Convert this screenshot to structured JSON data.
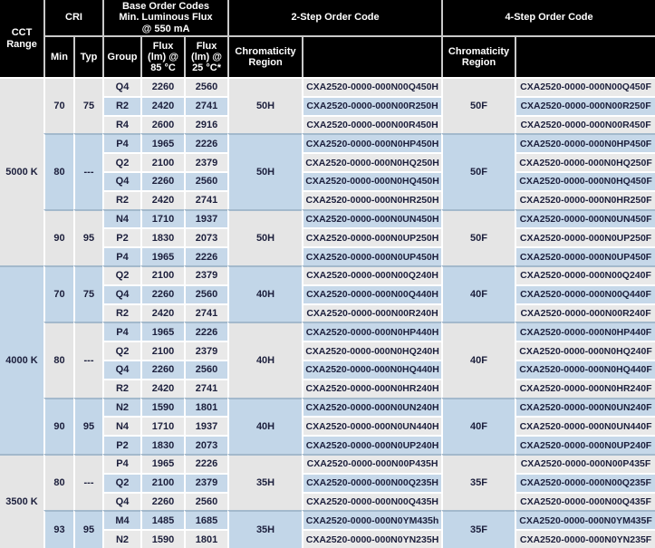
{
  "table": {
    "header": {
      "cct_range": "CCT\nRange",
      "cri": "CRI",
      "base_order_codes": "Base Order Codes\nMin. Luminous Flux\n@ 550 mA",
      "two_step": "2-Step Order Code",
      "four_step": "4-Step Order Code",
      "min": "Min",
      "typ": "Typ",
      "group": "Group",
      "flux_85": "Flux\n(lm) @\n85 °C",
      "flux_25": "Flux\n(lm) @\n25 °C*",
      "chromaticity": "Chromaticity\nRegion"
    },
    "sections": [
      {
        "cct": "5000 K",
        "tone": "gray",
        "blocks": [
          {
            "min": "70",
            "typ": "75",
            "tone": "gray",
            "chrom2": "50H",
            "chrom4": "50F",
            "rows": [
              {
                "group": "Q4",
                "flux85": "2260",
                "flux25": "2560",
                "code2": "CXA2520-0000-000N00Q450H",
                "code4": "CXA2520-0000-000N00Q450F"
              },
              {
                "group": "R2",
                "flux85": "2420",
                "flux25": "2741",
                "code2": "CXA2520-0000-000N00R250H",
                "code4": "CXA2520-0000-000N00R250F"
              },
              {
                "group": "R4",
                "flux85": "2600",
                "flux25": "2916",
                "code2": "CXA2520-0000-000N00R450H",
                "code4": "CXA2520-0000-000N00R450F"
              }
            ]
          },
          {
            "min": "80",
            "typ": "---",
            "tone": "blue",
            "chrom2": "50H",
            "chrom4": "50F",
            "rows": [
              {
                "group": "P4",
                "flux85": "1965",
                "flux25": "2226",
                "code2": "CXA2520-0000-000N0HP450H",
                "code4": "CXA2520-0000-000N0HP450F"
              },
              {
                "group": "Q2",
                "flux85": "2100",
                "flux25": "2379",
                "code2": "CXA2520-0000-000N0HQ250H",
                "code4": "CXA2520-0000-000N0HQ250F"
              },
              {
                "group": "Q4",
                "flux85": "2260",
                "flux25": "2560",
                "code2": "CXA2520-0000-000N0HQ450H",
                "code4": "CXA2520-0000-000N0HQ450F"
              },
              {
                "group": "R2",
                "flux85": "2420",
                "flux25": "2741",
                "code2": "CXA2520-0000-000N0HR250H",
                "code4": "CXA2520-0000-000N0HR250F"
              }
            ]
          },
          {
            "min": "90",
            "typ": "95",
            "tone": "gray",
            "chrom2": "50H",
            "chrom4": "50F",
            "rows": [
              {
                "group": "N4",
                "flux85": "1710",
                "flux25": "1937",
                "code2": "CXA2520-0000-000N0UN450H",
                "code4": "CXA2520-0000-000N0UN450F"
              },
              {
                "group": "P2",
                "flux85": "1830",
                "flux25": "2073",
                "code2": "CXA2520-0000-000N0UP250H",
                "code4": "CXA2520-0000-000N0UP250F"
              },
              {
                "group": "P4",
                "flux85": "1965",
                "flux25": "2226",
                "code2": "CXA2520-0000-000N0UP450H",
                "code4": "CXA2520-0000-000N0UP450F"
              }
            ]
          }
        ]
      },
      {
        "cct": "4000 K",
        "tone": "blue",
        "blocks": [
          {
            "min": "70",
            "typ": "75",
            "tone": "blue",
            "chrom2": "40H",
            "chrom4": "40F",
            "rows": [
              {
                "group": "Q2",
                "flux85": "2100",
                "flux25": "2379",
                "code2": "CXA2520-0000-000N00Q240H",
                "code4": "CXA2520-0000-000N00Q240F"
              },
              {
                "group": "Q4",
                "flux85": "2260",
                "flux25": "2560",
                "code2": "CXA2520-0000-000N00Q440H",
                "code4": "CXA2520-0000-000N00Q440F"
              },
              {
                "group": "R2",
                "flux85": "2420",
                "flux25": "2741",
                "code2": "CXA2520-0000-000N00R240H",
                "code4": "CXA2520-0000-000N00R240F"
              }
            ]
          },
          {
            "min": "80",
            "typ": "---",
            "tone": "gray",
            "chrom2": "40H",
            "chrom4": "40F",
            "rows": [
              {
                "group": "P4",
                "flux85": "1965",
                "flux25": "2226",
                "code2": "CXA2520-0000-000N0HP440H",
                "code4": "CXA2520-0000-000N0HP440F"
              },
              {
                "group": "Q2",
                "flux85": "2100",
                "flux25": "2379",
                "code2": "CXA2520-0000-000N0HQ240H",
                "code4": "CXA2520-0000-000N0HQ240F"
              },
              {
                "group": "Q4",
                "flux85": "2260",
                "flux25": "2560",
                "code2": "CXA2520-0000-000N0HQ440H",
                "code4": "CXA2520-0000-000N0HQ440F"
              },
              {
                "group": "R2",
                "flux85": "2420",
                "flux25": "2741",
                "code2": "CXA2520-0000-000N0HR240H",
                "code4": "CXA2520-0000-000N0HR240F"
              }
            ]
          },
          {
            "min": "90",
            "typ": "95",
            "tone": "blue",
            "chrom2": "40H",
            "chrom4": "40F",
            "rows": [
              {
                "group": "N2",
                "flux85": "1590",
                "flux25": "1801",
                "code2": "CXA2520-0000-000N0UN240H",
                "code4": "CXA2520-0000-000N0UN240F"
              },
              {
                "group": "N4",
                "flux85": "1710",
                "flux25": "1937",
                "code2": "CXA2520-0000-000N0UN440H",
                "code4": "CXA2520-0000-000N0UN440F"
              },
              {
                "group": "P2",
                "flux85": "1830",
                "flux25": "2073",
                "code2": "CXA2520-0000-000N0UP240H",
                "code4": "CXA2520-0000-000N0UP240F"
              }
            ]
          }
        ]
      },
      {
        "cct": "3500 K",
        "tone": "gray",
        "blocks": [
          {
            "min": "80",
            "typ": "---",
            "tone": "gray",
            "chrom2": "35H",
            "chrom4": "35F",
            "rows": [
              {
                "group": "P4",
                "flux85": "1965",
                "flux25": "2226",
                "code2": "CXA2520-0000-000N00P435H",
                "code4": "CXA2520-0000-000N00P435F"
              },
              {
                "group": "Q2",
                "flux85": "2100",
                "flux25": "2379",
                "code2": "CXA2520-0000-000N00Q235H",
                "code4": "CXA2520-0000-000N00Q235F"
              },
              {
                "group": "Q4",
                "flux85": "2260",
                "flux25": "2560",
                "code2": "CXA2520-0000-000N00Q435H",
                "code4": "CXA2520-0000-000N00Q435F"
              }
            ]
          },
          {
            "min": "93",
            "typ": "95",
            "tone": "blue",
            "chrom2": "35H",
            "chrom4": "35F",
            "rows": [
              {
                "group": "M4",
                "flux85": "1485",
                "flux25": "1685",
                "code2": "CXA2520-0000-000N0YM435h",
                "code4": "CXA2520-0000-000N0YM435F"
              },
              {
                "group": "N2",
                "flux85": "1590",
                "flux25": "1801",
                "code2": "CXA2520-0000-000N0YN235H",
                "code4": "CXA2520-0000-000N0YN235F"
              }
            ]
          }
        ]
      }
    ],
    "colors": {
      "header_bg": "#000000",
      "header_text": "#ffffff",
      "row_gray": "#e9e9e9",
      "row_blue": "#c6d8e9",
      "merged_gray": "#e5e5e5",
      "merged_blue": "#c2d6e8",
      "cell_border": "#ffffff",
      "block_separator": "#a3b9cc",
      "body_text": "#1c1f3c"
    }
  }
}
